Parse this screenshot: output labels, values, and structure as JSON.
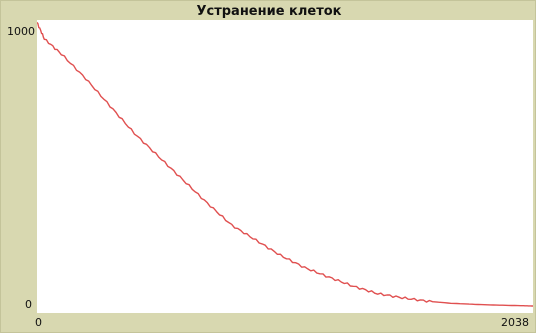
{
  "chart_data": {
    "type": "line",
    "title": "Устранение клеток",
    "xlabel": "",
    "ylabel": "",
    "xlim": [
      0,
      2038
    ],
    "ylim": [
      0,
      1000
    ],
    "x_tick_labels": [
      "0",
      "2038"
    ],
    "y_tick_labels": [
      "1000",
      "0"
    ],
    "grid": false,
    "series": [
      {
        "color": "#e05050",
        "x": [
          0,
          30,
          100,
          200,
          300,
          400,
          500,
          600,
          700,
          800,
          900,
          1000,
          1100,
          1200,
          1300,
          1400,
          1500,
          1600,
          1700,
          1800,
          1900,
          2000,
          2038
        ],
        "values": [
          1035,
          975,
          920,
          830,
          730,
          630,
          545,
          460,
          375,
          295,
          240,
          185,
          140,
          105,
          72,
          45,
          30,
          18,
          10,
          6,
          3,
          1,
          0
        ]
      }
    ]
  },
  "colors": {
    "frame": "#d8d8b0",
    "plot_background": "#ffffff",
    "line": "#e05050"
  }
}
